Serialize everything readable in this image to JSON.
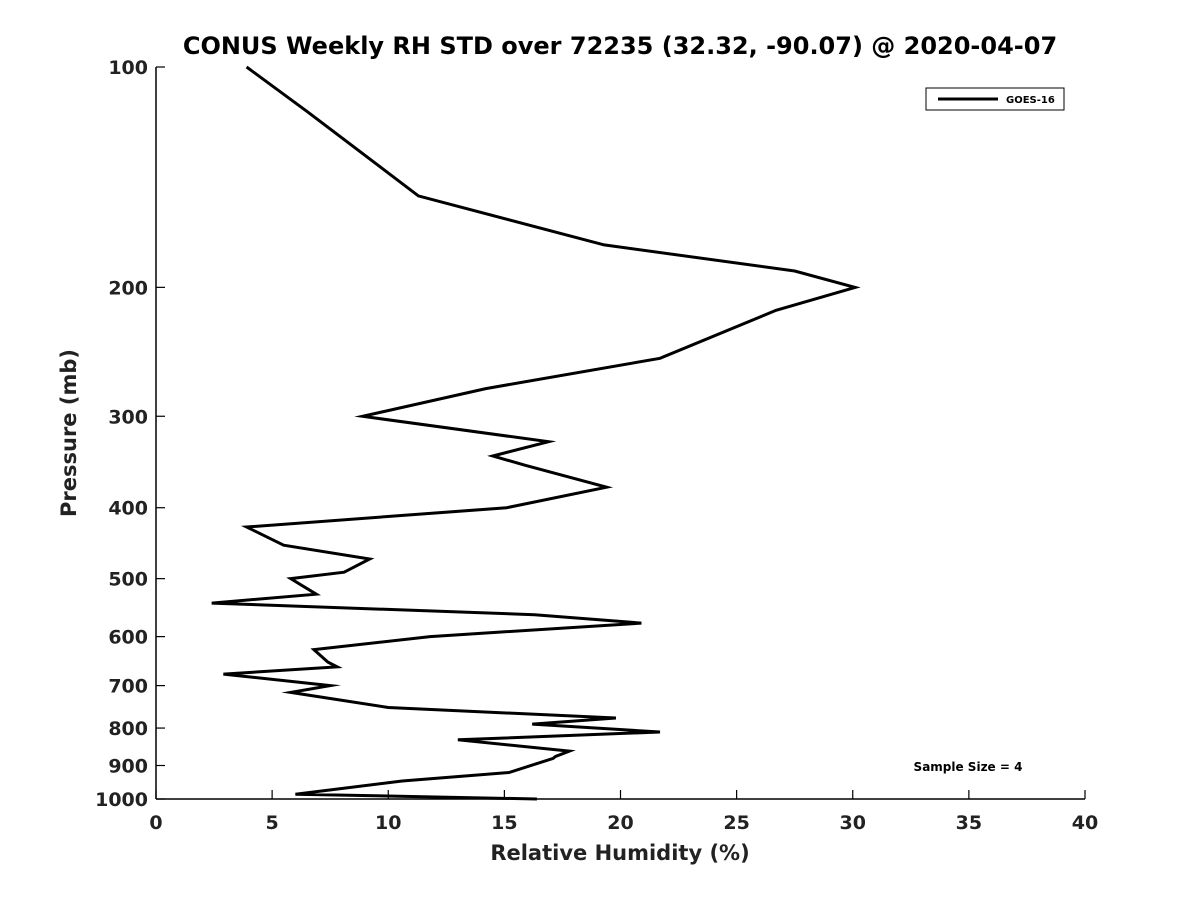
{
  "chart_data": {
    "type": "line",
    "title": "CONUS Weekly RH STD over 72235 (32.32, -90.07) @ 2020-04-07",
    "xlabel": "Relative Humidity (%)",
    "ylabel": "Pressure (mb)",
    "xlim": [
      0,
      40
    ],
    "ylim": [
      1000,
      100
    ],
    "yscale": "log",
    "y_reversed": true,
    "x_ticks": [
      0,
      5,
      10,
      15,
      20,
      25,
      30,
      35,
      40
    ],
    "y_ticks": [
      100,
      200,
      300,
      400,
      500,
      600,
      700,
      800,
      900,
      1000
    ],
    "grid": false,
    "legend": {
      "position": "top-right",
      "entries": [
        "GOES-16"
      ]
    },
    "annotations": [
      {
        "text": "Sample Size = 4",
        "position": "bottom-right"
      }
    ],
    "series": [
      {
        "name": "GOES-16",
        "color": "#000000",
        "x": [
          3.9,
          6.5,
          11.3,
          19.3,
          27.5,
          30.1,
          26.7,
          21.7,
          14.2,
          8.9,
          16.9,
          14.5,
          15.9,
          19.4,
          15.1,
          3.9,
          5.5,
          9.2,
          8.1,
          5.8,
          6.9,
          2.4,
          16.3,
          20.9,
          11.8,
          6.8,
          7.4,
          7.8,
          2.9,
          7.5,
          5.8,
          10.0,
          19.8,
          16.2,
          21.7,
          13.0,
          17.8,
          17.2,
          17.1,
          15.2,
          10.6,
          6.0,
          16.4
        ],
        "y": [
          100,
          115,
          150,
          175,
          190,
          200,
          215,
          250,
          275,
          300,
          325,
          340,
          350,
          375,
          400,
          425,
          450,
          470,
          490,
          500,
          525,
          540,
          560,
          575,
          600,
          625,
          650,
          660,
          675,
          700,
          715,
          750,
          775,
          790,
          810,
          830,
          860,
          875,
          880,
          920,
          945,
          985,
          1000
        ]
      }
    ]
  }
}
